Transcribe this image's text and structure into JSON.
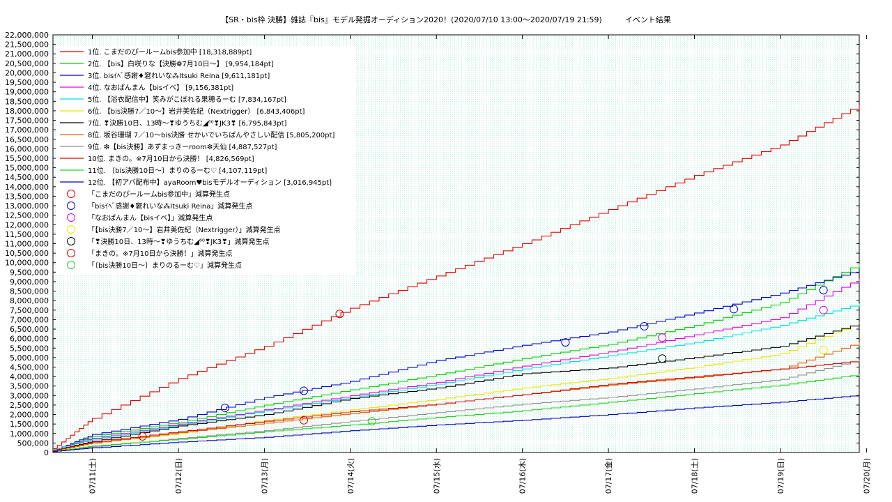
{
  "chart_data": {
    "type": "line",
    "title": "【SR・bis枠 決勝】雑誌『bis』モデル発掘オーディション2020！(2020/07/10 13:00～2020/07/19 21:59)　　　イベント結果",
    "xlabel": "",
    "ylabel": "",
    "x": [
      "07/10 13:00",
      "07/11 00:00",
      "07/12 00:00",
      "07/13 00:00",
      "07/14 00:00",
      "07/15 00:00",
      "07/16 00:00",
      "07/17 00:00",
      "07/18 00:00",
      "07/19 00:00",
      "07/19 21:59"
    ],
    "xticks": [
      "07/11(土)",
      "07/12(日)",
      "07/13(月)",
      "07/14(火)",
      "07/15(水)",
      "07/16(木)",
      "07/17(金)",
      "07/18(土)",
      "07/19(日)",
      "07/20(月)"
    ],
    "ylim": [
      0,
      22000000
    ],
    "ytick_step": 500000,
    "ytick_labels": [
      "0",
      "500,000",
      "1,000,000",
      "1,500,000",
      "2,000,000",
      "2,500,000",
      "3,000,000",
      "3,500,000",
      "4,000,000",
      "4,500,000",
      "5,000,000",
      "5,500,000",
      "6,000,000",
      "6,500,000",
      "7,000,000",
      "7,500,000",
      "8,000,000",
      "8,500,000",
      "9,000,000",
      "9,500,000",
      "10,000,000",
      "10,500,000",
      "11,000,000",
      "11,500,000",
      "12,000,000",
      "12,500,000",
      "13,000,000",
      "13,500,000",
      "14,000,000",
      "14,500,000",
      "15,000,000",
      "15,500,000",
      "16,000,000",
      "16,500,000",
      "17,000,000",
      "17,500,000",
      "18,000,000",
      "18,500,000",
      "19,000,000",
      "19,500,000",
      "20,000,000",
      "20,500,000",
      "21,000,000",
      "21,500,000",
      "22,000,000"
    ],
    "grid": true,
    "legend_position": "top-left",
    "series": [
      {
        "name": "1位. こまだのぴールームbis参加中 [18,318,889pt]",
        "color": "#e00000",
        "values": [
          200000,
          1800000,
          3900000,
          5600000,
          7600000,
          9300000,
          11000000,
          12800000,
          14600000,
          16200000,
          18318889
        ]
      },
      {
        "name": "2位. 【bis】白咲りな【決勝❁7月10日〜】 [9,954,184pt]",
        "color": "#00d000",
        "values": [
          100000,
          850000,
          1600000,
          2500000,
          3300000,
          4100000,
          4950000,
          5700000,
          6700000,
          7900000,
          9954184
        ]
      },
      {
        "name": "3位. bisｲﾍﾞ感謝♦窘れいな⁂Itsuki Reina [9,611,181pt]",
        "color": "#0000d0",
        "values": [
          100000,
          950000,
          1750000,
          2900000,
          3750000,
          4850000,
          5650000,
          6350000,
          7350000,
          8400000,
          9611181
        ]
      },
      {
        "name": "4位. なおぱんまん【bisイベ】 [9,156,381pt]",
        "color": "#e000e0",
        "values": [
          150000,
          750000,
          1500000,
          2250000,
          3000000,
          3700000,
          4550000,
          5300000,
          6200000,
          7100000,
          9156381
        ]
      },
      {
        "name": "5位. 【浴衣配信中】笑みがこぼれる果穂るーむ [7,834,167pt]",
        "color": "#00e0e0",
        "values": [
          150000,
          700000,
          1450000,
          2200000,
          2900000,
          3600000,
          4400000,
          5100000,
          5800000,
          6700000,
          7834167
        ]
      },
      {
        "name": "6位. 【bis決勝7／10〜】岩井美佐紀（Nextrigger） [6,843,406pt]",
        "color": "#e8e800",
        "values": [
          50000,
          500000,
          1000000,
          1700000,
          2250000,
          2800000,
          3400000,
          3900000,
          4500000,
          5200000,
          6843406
        ]
      },
      {
        "name": "7位. ❣決勝10日、13時〜❣ゆうちむ◢⁶⁰❣JK3❣ [6,795,843pt]",
        "color": "#000000",
        "values": [
          100000,
          600000,
          1400000,
          2000000,
          2850000,
          3400000,
          4150000,
          4450000,
          5000000,
          5600000,
          6795843
        ]
      },
      {
        "name": "8位. 坂谷珊瑚 7／10〜bis決勝 せかいでいちばんやさしい配信 [5,805,200pt]",
        "color": "#e06000",
        "values": [
          100000,
          500000,
          1050000,
          1550000,
          2050000,
          2550000,
          3050000,
          3550000,
          3950000,
          4400000,
          5805200
        ]
      },
      {
        "name": "9位. ❇【bis決勝】あずまっきーroom❇天仙 [4,887,527pt]",
        "color": "#909090",
        "values": [
          50000,
          300000,
          750000,
          1150000,
          1650000,
          2100000,
          2550000,
          2900000,
          3350000,
          3850000,
          4887527
        ]
      },
      {
        "name": "10位. まきの。※7月10日から決勝！ [4,826,569pt]",
        "color": "#d80000",
        "values": [
          100000,
          550000,
          1100000,
          1650000,
          2150000,
          2550000,
          3050000,
          3600000,
          4000000,
          4400000,
          4826569
        ]
      },
      {
        "name": "11位. 〔bis決勝10日〜〕まりのるーむ♡ [4,107,119pt]",
        "color": "#20d020",
        "values": [
          50000,
          350000,
          700000,
          1100000,
          1450000,
          1850000,
          2200000,
          2650000,
          3100000,
          3550000,
          4107119
        ]
      },
      {
        "name": "12位. 【初アバ配布中】ayaRoom♥bisモデルオーディション [3,016,945pt]",
        "color": "#0000c0",
        "values": [
          50000,
          250000,
          550000,
          800000,
          1150000,
          1450000,
          1700000,
          2000000,
          2350000,
          2650000,
          3016945
        ]
      }
    ],
    "reduction_markers": [
      {
        "name": "「こまだのぴールームbis参加中」減算発生点",
        "color": "#e00000",
        "series": 0,
        "points": [
          [
            "07/13 21:00",
            7300000
          ]
        ]
      },
      {
        "name": "「bisｲﾍﾞ感謝♦窘れいな⁂Itsuki Reina」減算発生点",
        "color": "#0000d0",
        "series": 2,
        "points": [
          [
            "07/12 13:00",
            2350000
          ],
          [
            "07/13 11:00",
            3250000
          ],
          [
            "07/16 12:00",
            5800000
          ],
          [
            "07/17 10:00",
            6650000
          ],
          [
            "07/18 11:00",
            7550000
          ],
          [
            "07/19 12:00",
            8550000
          ]
        ]
      },
      {
        "name": "「なおぱんまん【bisイベ】」減算発生点",
        "color": "#e000e0",
        "series": 3,
        "points": [
          [
            "07/17 15:00",
            6050000
          ],
          [
            "07/19 12:00",
            7500000
          ]
        ]
      },
      {
        "name": "「【bis決勝7／10〜】岩井美佐紀（Nextrigger）」減算発生点",
        "color": "#e8e800",
        "series": 5,
        "points": [
          [
            "07/19 12:00",
            5400000
          ]
        ]
      },
      {
        "name": "「❣決勝10日、13時〜❣ゆうちむ◢⁶⁰❣JK3❣」減算発生点",
        "color": "#000000",
        "series": 6,
        "points": [
          [
            "07/17 15:00",
            4950000
          ]
        ]
      },
      {
        "name": "「まきの。※7月10日から決勝！」減算発生点",
        "color": "#d80000",
        "series": 9,
        "points": [
          [
            "07/11 14:00",
            850000
          ],
          [
            "07/13 11:00",
            1700000
          ]
        ]
      },
      {
        "name": "「〔bis決勝10日〜〕まりのるーむ♡」減算発生点",
        "color": "#20d020",
        "series": 10,
        "points": [
          [
            "07/14 06:00",
            1650000
          ]
        ]
      }
    ]
  }
}
